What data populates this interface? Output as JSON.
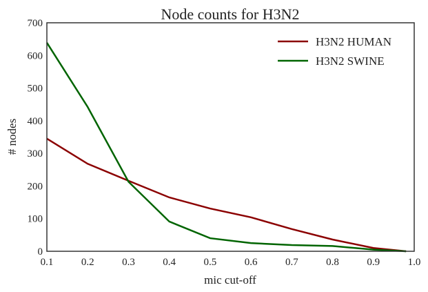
{
  "chart_data": {
    "type": "line",
    "title": "Node counts for H3N2",
    "xlabel": "mic cut-off",
    "ylabel": "# nodes",
    "xlim": [
      0.1,
      1.0
    ],
    "ylim": [
      0,
      700
    ],
    "xticks": [
      "0.1",
      "0.2",
      "0.3",
      "0.4",
      "0.5",
      "0.6",
      "0.7",
      "0.8",
      "0.9",
      "1.0"
    ],
    "yticks": [
      "0",
      "100",
      "200",
      "300",
      "400",
      "500",
      "600",
      "700"
    ],
    "grid": false,
    "legend_position": "top-right",
    "x": [
      0.1,
      0.2,
      0.3,
      0.4,
      0.5,
      0.6,
      0.7,
      0.8,
      0.9,
      0.98
    ],
    "series": [
      {
        "name": "H3N2 HUMAN",
        "color": "#8b0000",
        "values": [
          345,
          268,
          216,
          165,
          131,
          104,
          68,
          36,
          10,
          0
        ]
      },
      {
        "name": "H3N2 SWINE",
        "color": "#006400",
        "values": [
          639,
          442,
          213,
          91,
          40,
          25,
          19,
          16,
          5,
          0
        ]
      }
    ]
  }
}
